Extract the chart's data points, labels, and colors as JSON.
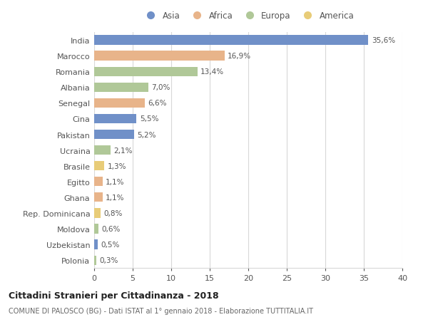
{
  "countries": [
    "India",
    "Marocco",
    "Romania",
    "Albania",
    "Senegal",
    "Cina",
    "Pakistan",
    "Ucraina",
    "Brasile",
    "Egitto",
    "Ghana",
    "Rep. Dominicana",
    "Moldova",
    "Uzbekistan",
    "Polonia"
  ],
  "values": [
    35.6,
    16.9,
    13.4,
    7.0,
    6.6,
    5.5,
    5.2,
    2.1,
    1.3,
    1.1,
    1.1,
    0.8,
    0.6,
    0.5,
    0.3
  ],
  "labels": [
    "35,6%",
    "16,9%",
    "13,4%",
    "7,0%",
    "6,6%",
    "5,5%",
    "5,2%",
    "2,1%",
    "1,3%",
    "1,1%",
    "1,1%",
    "0,8%",
    "0,6%",
    "0,5%",
    "0,3%"
  ],
  "continents": [
    "Asia",
    "Africa",
    "Europa",
    "Europa",
    "Africa",
    "Asia",
    "Asia",
    "Europa",
    "America",
    "Africa",
    "Africa",
    "America",
    "Europa",
    "Asia",
    "Europa"
  ],
  "continent_colors": {
    "Asia": "#7090c8",
    "Africa": "#e8b48a",
    "Europa": "#b0c898",
    "America": "#e8cc78"
  },
  "legend_order": [
    "Asia",
    "Africa",
    "Europa",
    "America"
  ],
  "xlim": [
    0,
    40
  ],
  "xticks": [
    0,
    5,
    10,
    15,
    20,
    25,
    30,
    35,
    40
  ],
  "title": "Cittadini Stranieri per Cittadinanza - 2018",
  "subtitle": "COMUNE DI PALOSCO (BG) - Dati ISTAT al 1° gennaio 2018 - Elaborazione TUTTITALIA.IT",
  "background_color": "#ffffff",
  "grid_color": "#d8d8d8"
}
